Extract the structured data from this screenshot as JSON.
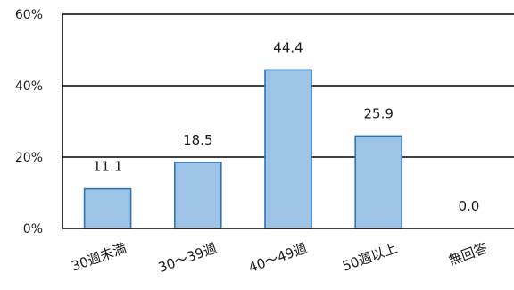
{
  "chart_data": {
    "type": "bar",
    "title": "",
    "xlabel": "",
    "ylabel": "",
    "categories": [
      "30週未満",
      "30～39週",
      "40～49週",
      "50週以上",
      "無回答"
    ],
    "values": [
      11.1,
      18.5,
      44.4,
      25.9,
      0.0
    ],
    "data_labels": [
      "11.1",
      "18.5",
      "44.4",
      "25.9",
      "0.0"
    ],
    "ylim": [
      0,
      60
    ],
    "yticks": [
      0,
      20,
      40,
      60
    ],
    "ytick_labels": [
      "0%",
      "20%",
      "40%",
      "60%"
    ],
    "grid": true,
    "legend": "none",
    "colors": {
      "bar_fill": "#9dc3e6",
      "bar_stroke": "#2e75b6",
      "grid": "#000000",
      "text": "#1a1a1a"
    }
  }
}
